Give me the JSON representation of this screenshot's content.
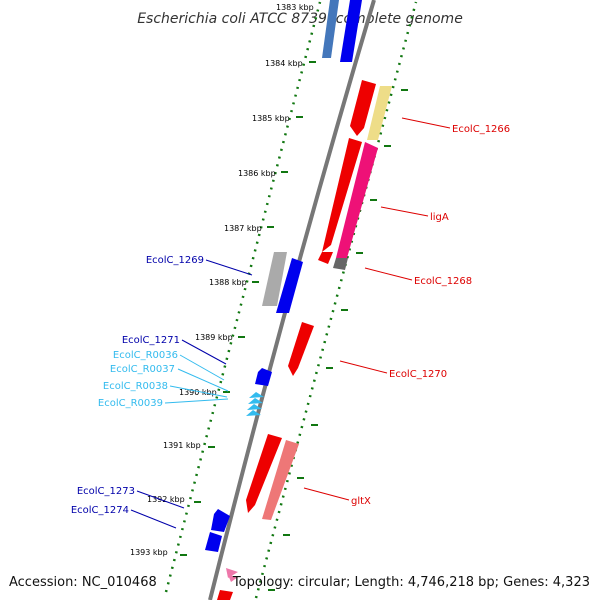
{
  "title": "Escherichia coli ATCC 8739, complete genome",
  "footer": {
    "accession": "Accession: NC_010468",
    "topology": "Topology: circular; Length: 4,746,218 bp; Genes: 4,323"
  },
  "colors": {
    "forward_gene": "#0000ee",
    "reverse_gene": "#ee0000",
    "rna_gene": "#33bbee",
    "tick": "#117711",
    "backbone": "#888888"
  },
  "kbp_ticks": [
    "1383 kbp",
    "1384 kbp",
    "1385 kbp",
    "1386 kbp",
    "1387 kbp",
    "1388 kbp",
    "1389 kbp",
    "1390 kbp",
    "1391 kbp",
    "1392 kbp",
    "1393 kbp"
  ],
  "labels": {
    "left": [
      "EcolC_1269",
      "EcolC_1271",
      "EcolC_R0036",
      "EcolC_R0037",
      "EcolC_R0038",
      "EcolC_R0039",
      "EcolC_1273",
      "EcolC_1274"
    ],
    "right": [
      "EcolC_1266",
      "ligA",
      "EcolC_1268",
      "EcolC_1270",
      "gltX"
    ]
  }
}
